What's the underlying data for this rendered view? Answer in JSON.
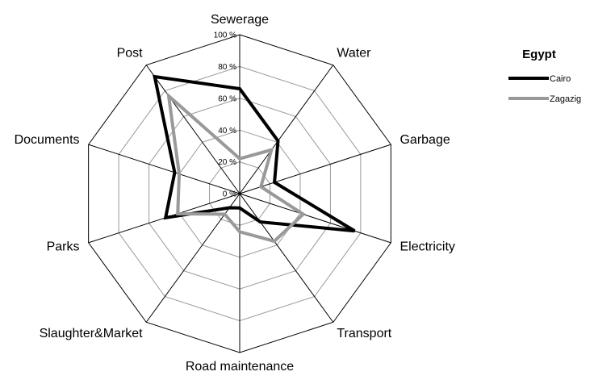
{
  "chart_data": {
    "type": "radar",
    "categories": [
      "Sewerage",
      "Water",
      "Garbage",
      "Electricity",
      "Transport",
      "Road maintenance",
      "Slaughter&Market",
      "Parks",
      "Documents",
      "Post"
    ],
    "series": [
      {
        "name": "Cairo",
        "color": "#000000",
        "values": [
          66,
          41,
          23,
          76,
          22,
          9,
          11,
          49,
          43,
          91
        ]
      },
      {
        "name": "Zagazig",
        "color": "#999999",
        "values": [
          22,
          34,
          14,
          42,
          37,
          24,
          16,
          41,
          40,
          76
        ]
      }
    ],
    "legend_title": "Egypt",
    "rlim": [
      0,
      100
    ],
    "rticks": [
      {
        "value": 0,
        "label": "0 %"
      },
      {
        "value": 20,
        "label": "20 %"
      },
      {
        "value": 40,
        "label": "40 %"
      },
      {
        "value": 60,
        "label": "60 %"
      },
      {
        "value": 80,
        "label": "80 %"
      },
      {
        "value": 100,
        "label": "100 %"
      }
    ],
    "legend_position": "upper right"
  }
}
